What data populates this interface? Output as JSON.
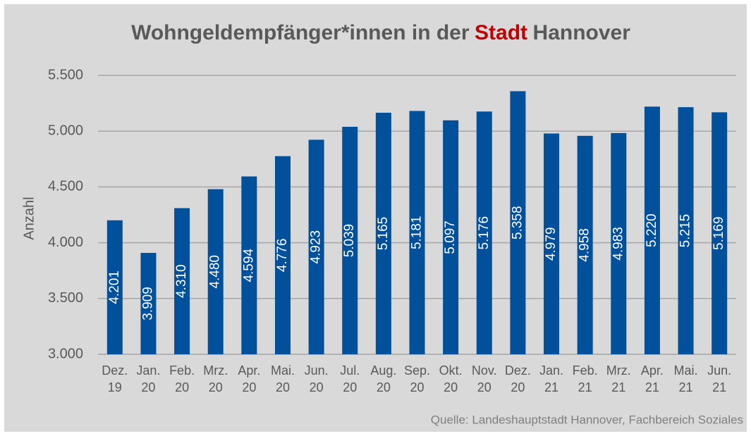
{
  "chart_data": {
    "type": "bar",
    "title": [
      "Wohngeldempfänger*innen in der",
      "Stadt",
      "Hannover"
    ],
    "title_colors": [
      "#595959",
      "#c00000",
      "#595959"
    ],
    "y_label": "Anzahl",
    "source": "Quelle: Landeshauptstadt Hannover, Fachbereich Soziales",
    "categories": [
      [
        "Dez.",
        "19"
      ],
      [
        "Jan.",
        "20"
      ],
      [
        "Feb.",
        "20"
      ],
      [
        "Mrz.",
        "20"
      ],
      [
        "Apr.",
        "20"
      ],
      [
        "Mai.",
        "20"
      ],
      [
        "Jun.",
        "20"
      ],
      [
        "Jul.",
        "20"
      ],
      [
        "Aug.",
        "20"
      ],
      [
        "Sep.",
        "20"
      ],
      [
        "Okt.",
        "20"
      ],
      [
        "Nov.",
        "20"
      ],
      [
        "Dez.",
        "20"
      ],
      [
        "Jan.",
        "21"
      ],
      [
        "Feb.",
        "21"
      ],
      [
        "Mrz.",
        "21"
      ],
      [
        "Apr.",
        "21"
      ],
      [
        "Mai.",
        "21"
      ],
      [
        "Jun.",
        "21"
      ]
    ],
    "values": [
      4201,
      3909,
      4310,
      4480,
      4594,
      4776,
      4923,
      5039,
      5165,
      5181,
      5097,
      5176,
      5358,
      4979,
      4958,
      4983,
      5220,
      5215,
      5169
    ],
    "value_labels": [
      "4.201",
      "3.909",
      "4.310",
      "4.480",
      "4.594",
      "4.776",
      "4.923",
      "5.039",
      "5.165",
      "5.181",
      "5.097",
      "5.176",
      "5.358",
      "4.979",
      "4.958",
      "4.983",
      "5.220",
      "5.215",
      "5.169"
    ],
    "color": "#00509b",
    "ylim": [
      3000,
      5500
    ],
    "yticks": [
      {
        "value": 3000,
        "label": "3.000"
      },
      {
        "value": 3500,
        "label": "3.500"
      },
      {
        "value": 4000,
        "label": "4.000"
      },
      {
        "value": 4500,
        "label": "4.500"
      },
      {
        "value": 5000,
        "label": "5.000"
      },
      {
        "value": 5500,
        "label": "5.500"
      }
    ],
    "grid": true
  }
}
